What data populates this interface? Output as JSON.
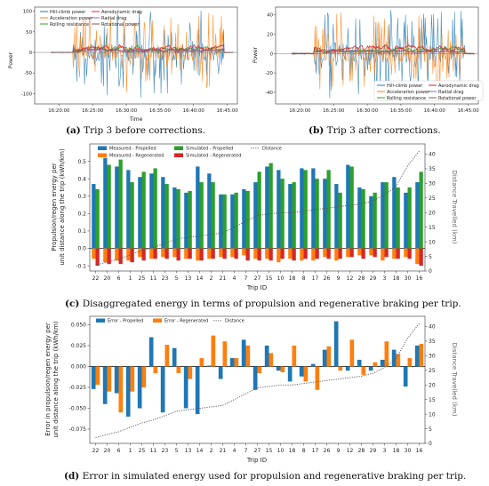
{
  "captions": {
    "a": {
      "label": "(a)",
      "text": "Trip 3 before corrections."
    },
    "b": {
      "label": "(b)",
      "text": "Trip 3 after corrections."
    },
    "c": {
      "label": "(c)",
      "text": "Disaggregated energy in terms of propulsion and regenerative braking per trip."
    },
    "d": {
      "label": "(d)",
      "text": "Error in simulated energy used for propulsion and regenerative braking per trip."
    }
  },
  "colors": {
    "hill": "#1f77b4",
    "accel": "#ff7f0e",
    "rolling": "#2ca02c",
    "aero": "#d62728",
    "radial": "#9467bd",
    "rot": "#8c564b",
    "dist": "#555555"
  },
  "chart_data": [
    {
      "id": "a",
      "type": "line",
      "ylabel": "Power",
      "xlabel": "Time",
      "yticks": [
        100,
        50,
        0,
        -50,
        -100
      ],
      "ylim": [
        -125,
        110
      ],
      "xticks": [
        "16:20:00",
        "16:25:00",
        "16:30:00",
        "16:35:00",
        "16:40:00",
        "16:45:00"
      ],
      "legend": [
        "Hill-climb power",
        "Acceleration power",
        "Rolling resistance",
        "Aerodynamic drag",
        "Radial drag",
        "Rotational power"
      ]
    },
    {
      "id": "b",
      "type": "line",
      "ylabel": "Power",
      "yticks": [
        40,
        20,
        0,
        -20,
        -40
      ],
      "ylim": [
        -52,
        48
      ],
      "xticks": [
        "16:20:00",
        "16:25:00",
        "16:30:00",
        "16:35:00",
        "16:40:00",
        "16:45:00"
      ],
      "legend": [
        "Hill-climb power",
        "Acceleration power",
        "Rolling resistance",
        "Aerodynamic drag",
        "Radial drag",
        "Rotational power"
      ]
    },
    {
      "id": "c",
      "type": "bar",
      "ylabel": "Propulsion/regen energy per unit distance along the trip (kWh/km)",
      "ylabel_lines": [
        "Propulsion/regen energy per",
        "unit distance along the trip (kWh/km)"
      ],
      "y2label": "Distance Travelled (km)",
      "xlabel": "Trip ID",
      "categories": [
        "22",
        "20",
        "6",
        "1",
        "25",
        "11",
        "23",
        "5",
        "13",
        "14",
        "2",
        "21",
        "4",
        "7",
        "27",
        "15",
        "10",
        "18",
        "8",
        "17",
        "26",
        "9",
        "12",
        "28",
        "29",
        "3",
        "18",
        "30",
        "16"
      ],
      "ylim": [
        -0.13,
        0.6
      ],
      "yticks": [
        0.5,
        0.4,
        0.3,
        0.2,
        0.1,
        0.0,
        -0.1
      ],
      "y2lim": [
        0,
        43.5
      ],
      "y2ticks": [
        40,
        35,
        30,
        25,
        20,
        15,
        10,
        5,
        0
      ],
      "legend": [
        "Measured - Propelled",
        "Measured - Regenerated",
        "Simulated - Propelled",
        "Simulated - Regenerated",
        "Distance"
      ],
      "series": [
        {
          "name": "Measured - Propelled",
          "values": [
            0.37,
            0.52,
            0.47,
            0.45,
            0.41,
            0.43,
            0.41,
            0.35,
            0.32,
            0.47,
            0.43,
            0.31,
            0.31,
            0.34,
            0.38,
            0.47,
            0.45,
            0.37,
            0.46,
            0.46,
            0.4,
            0.37,
            0.48,
            0.35,
            0.3,
            0.38,
            0.41,
            0.32,
            0.38
          ]
        },
        {
          "name": "Measured - Regenerated",
          "values": [
            -0.06,
            -0.08,
            -0.07,
            -0.07,
            -0.05,
            -0.06,
            -0.05,
            -0.05,
            -0.06,
            -0.07,
            -0.06,
            -0.05,
            -0.05,
            -0.04,
            -0.06,
            -0.06,
            -0.08,
            -0.06,
            -0.07,
            -0.07,
            -0.05,
            -0.07,
            -0.05,
            -0.04,
            -0.04,
            -0.07,
            -0.06,
            -0.05,
            -0.09
          ]
        },
        {
          "name": "Simulated - Propelled",
          "values": [
            0.34,
            0.48,
            0.51,
            0.38,
            0.44,
            0.46,
            0.37,
            0.34,
            0.33,
            0.38,
            0.38,
            0.31,
            0.32,
            0.33,
            0.44,
            0.49,
            0.4,
            0.38,
            0.45,
            0.4,
            0.45,
            0.32,
            0.47,
            0.34,
            0.32,
            0.38,
            0.35,
            0.35,
            0.44
          ]
        },
        {
          "name": "Simulated - Regenerated",
          "values": [
            -0.1,
            -0.09,
            -0.09,
            -0.08,
            -0.07,
            -0.06,
            -0.06,
            -0.07,
            -0.06,
            -0.07,
            -0.06,
            -0.06,
            -0.06,
            -0.07,
            -0.07,
            -0.07,
            -0.06,
            -0.07,
            -0.06,
            -0.06,
            -0.06,
            -0.06,
            -0.05,
            -0.06,
            -0.05,
            -0.05,
            -0.06,
            -0.06,
            -0.1
          ]
        },
        {
          "name": "Distance",
          "values": [
            2,
            3,
            4,
            5.5,
            7,
            8,
            9.5,
            11,
            11.5,
            12,
            12.5,
            13,
            15,
            17,
            19,
            19.5,
            20,
            20,
            20.5,
            21,
            21.5,
            22,
            22.5,
            23,
            24,
            26,
            29,
            36,
            41
          ]
        }
      ]
    },
    {
      "id": "d",
      "type": "bar",
      "ylabel": "Error in propulsion/regen energy per unit distance along the trip (kWh/km)",
      "ylabel_lines": [
        "Error in propulsion/regen energy per",
        "unit distance along the trip (kWh/km)"
      ],
      "y2label": "Distance Travelled (km)",
      "xlabel": "Trip ID",
      "categories": [
        "22",
        "20",
        "6",
        "1",
        "25",
        "11",
        "23",
        "5",
        "13",
        "14",
        "2",
        "21",
        "4",
        "7",
        "27",
        "15",
        "10",
        "18",
        "8",
        "17",
        "26",
        "9",
        "12",
        "28",
        "29",
        "3",
        "18",
        "30",
        "16"
      ],
      "ylim": [
        -0.092,
        0.06
      ],
      "yticks": [
        0.05,
        0.025,
        0.0,
        -0.025,
        -0.05,
        -0.075
      ],
      "y2lim": [
        0,
        43.5
      ],
      "y2ticks": [
        40,
        35,
        30,
        25,
        20,
        15,
        10,
        5,
        0
      ],
      "legend": [
        "Error - Propelled",
        "Error - Regenerated",
        "Distance"
      ],
      "series": [
        {
          "name": "Error - Propelled",
          "values": [
            -0.027,
            -0.045,
            -0.032,
            -0.06,
            -0.05,
            0.035,
            -0.055,
            0.022,
            -0.05,
            -0.057,
            0.001,
            -0.015,
            0.01,
            0.032,
            -0.028,
            0.025,
            -0.005,
            -0.018,
            -0.012,
            0.003,
            0.02,
            0.054,
            -0.005,
            0.008,
            -0.005,
            0.008,
            0.02,
            -0.024,
            0.025
          ]
        },
        {
          "name": "Error - Regenerated",
          "values": [
            -0.022,
            -0.03,
            -0.055,
            -0.03,
            -0.025,
            -0.008,
            0.026,
            -0.008,
            -0.015,
            0.01,
            0.037,
            0.03,
            0.01,
            0.025,
            -0.008,
            0.016,
            -0.007,
            0.025,
            -0.018,
            -0.028,
            0.024,
            -0.005,
            0.032,
            -0.01,
            0.005,
            0.03,
            0.015,
            0.01,
            0.027
          ]
        },
        {
          "name": "Distance",
          "values": [
            2,
            3,
            4,
            5.5,
            7,
            8,
            9.5,
            11,
            11.5,
            12,
            12.5,
            13,
            15,
            17,
            19,
            19.5,
            20,
            20,
            20.5,
            21,
            21.5,
            22,
            22.5,
            23,
            24,
            26,
            29,
            36,
            41
          ]
        }
      ]
    }
  ]
}
